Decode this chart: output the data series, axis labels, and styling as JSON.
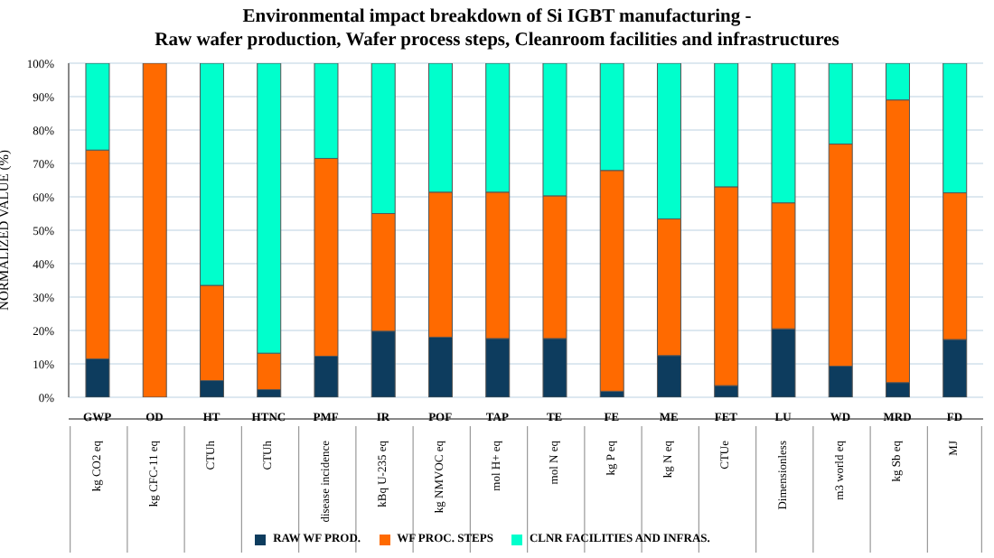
{
  "chart_data": {
    "type": "bar",
    "stacked": true,
    "title": "Environmental impact breakdown of Si IGBT manufacturing -",
    "subtitle": "Raw wafer production, Wafer process steps, Cleanroom facilities and infrastructures",
    "ylabel": "NORMALIZED VALUE (%)",
    "categories": [
      "GWP",
      "OD",
      "HT",
      "HTNC",
      "PMF",
      "IR",
      "POF",
      "TAP",
      "TE",
      "FE",
      "ME",
      "FET",
      "LU",
      "WD",
      "MRD",
      "FD"
    ],
    "series": [
      {
        "name": "RAW WF PROD.",
        "color": "#0d3c5e",
        "values": [
          11.5,
          0,
          5,
          2.3,
          12.3,
          19.8,
          18,
          17.6,
          17.6,
          1.8,
          12.5,
          3.5,
          20.5,
          9.3,
          4.4,
          17.3
        ]
      },
      {
        "name": "WF PROC. STEPS",
        "color": "#ff6a00",
        "values": [
          62.5,
          100,
          28.5,
          10.9,
          59.2,
          35.2,
          43.4,
          43.8,
          42.7,
          66.1,
          40.9,
          59.5,
          37.7,
          66.5,
          84.6,
          43.9
        ]
      },
      {
        "name": "CLNR FACILITIES AND INFRAS.",
        "color": "#00ffcc",
        "values": [
          26,
          0,
          66.5,
          86.8,
          28.5,
          45,
          38.6,
          38.6,
          39.7,
          32.1,
          46.6,
          37,
          41.8,
          24.2,
          11,
          38.8
        ]
      }
    ],
    "ylim": [
      0,
      100
    ],
    "yticks": [
      {
        "value": 0,
        "label": "0%"
      },
      {
        "value": 10,
        "label": "10%"
      },
      {
        "value": 20,
        "label": "20%"
      },
      {
        "value": 30,
        "label": "30%"
      },
      {
        "value": 40,
        "label": "40%"
      },
      {
        "value": 50,
        "label": "50%"
      },
      {
        "value": 60,
        "label": "60%"
      },
      {
        "value": 70,
        "label": "70%"
      },
      {
        "value": 80,
        "label": "80%"
      },
      {
        "value": 90,
        "label": "90%"
      },
      {
        "value": 100,
        "label": "100%"
      }
    ],
    "grid": "y",
    "legend": "bottom",
    "annotations": [
      "kg CO2 eq",
      "kg CFC-11 eq",
      "CTUh",
      "CTUh",
      "disease incidence",
      "kBq U-235 eq",
      "kg NMVOC eq",
      "mol H+ eq",
      "mol N eq",
      "kg P eq",
      "kg N eq",
      "CTUe",
      "Dimensionless",
      "m3 world eq",
      "kg Sb eq",
      "MJ"
    ]
  }
}
